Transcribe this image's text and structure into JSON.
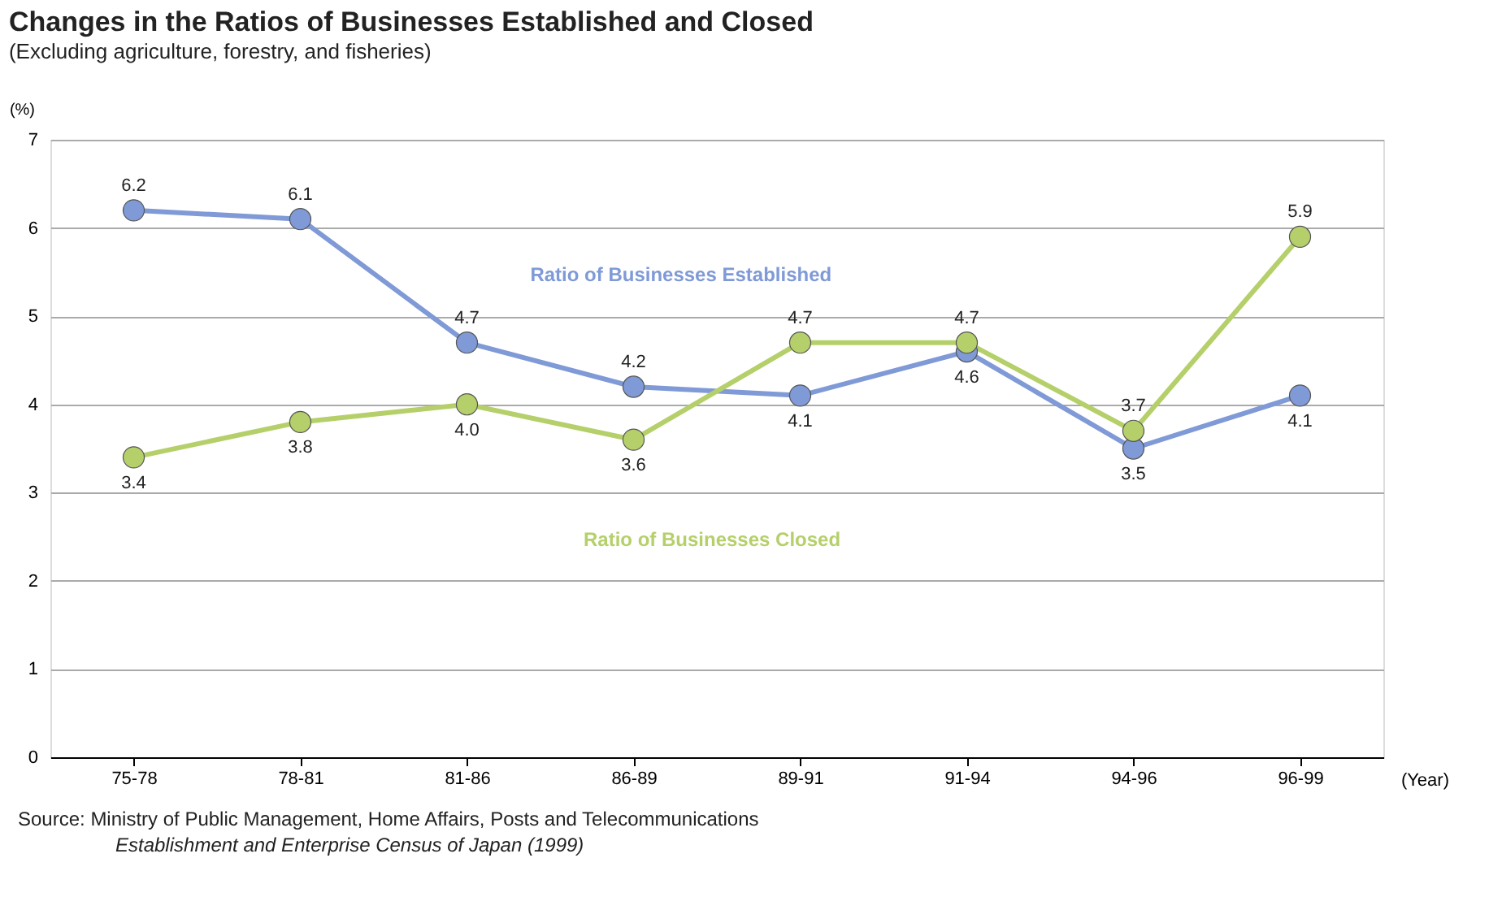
{
  "chart_data": {
    "type": "line",
    "title": "Changes in the Ratios of Businesses Established and Closed",
    "subtitle": "(Excluding agriculture, forestry, and fisheries)",
    "xlabel": "(Year)",
    "ylabel": "(%)",
    "categories": [
      "75-78",
      "78-81",
      "81-86",
      "86-89",
      "89-91",
      "91-94",
      "94-96",
      "96-99"
    ],
    "series": [
      {
        "name": "Ratio of Businesses Established",
        "color": "#7f9ad6",
        "values": [
          6.2,
          6.1,
          4.7,
          4.2,
          4.1,
          4.6,
          3.5,
          4.1
        ],
        "value_labels": [
          "6.2",
          "6.1",
          "4.7",
          "4.2",
          "4.1",
          "4.6",
          "3.5",
          "4.1"
        ]
      },
      {
        "name": "Ratio of Businesses Closed",
        "color": "#b5d06a",
        "values": [
          3.4,
          3.8,
          4.0,
          3.6,
          4.7,
          4.7,
          3.7,
          5.9
        ],
        "value_labels": [
          "3.4",
          "3.8",
          "4.0",
          "3.6",
          "4.7",
          "4.7",
          "3.7",
          "5.9"
        ]
      }
    ],
    "ylim": [
      0,
      7
    ],
    "yticks": [
      0,
      1,
      2,
      3,
      4,
      5,
      6,
      7
    ],
    "grid": "y",
    "legend": false,
    "marker": "circle",
    "line_style": "solid",
    "annotations": [
      "Source: Ministry of Public Management, Home Affairs, Posts and Telecommunications",
      "Establishment and Enterprise Census of Japan (1999)"
    ]
  }
}
